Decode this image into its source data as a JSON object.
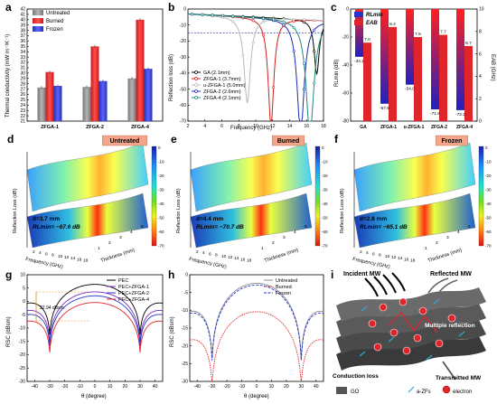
{
  "panels": {
    "a": {
      "letter": "a",
      "ylabel": "Thermal conductivity (mW m⁻¹K⁻¹)",
      "yticks": [
        "21",
        "22",
        "23",
        "24",
        "25",
        "26",
        "27",
        "28",
        "29",
        "30",
        "31",
        "32",
        "33",
        "34",
        "35",
        "36",
        "37",
        "38",
        "39",
        "40",
        "41",
        "42"
      ],
      "legend": [
        "Untreated",
        "Burned",
        "Frozen"
      ],
      "colors": {
        "untreated": "#8c8c8c",
        "burned": "#e0252a",
        "frozen": "#3a44d8"
      },
      "chart_data": {
        "type": "bar",
        "categories": [
          "ZFGA-1",
          "ZFGA-2",
          "ZFGA-4"
        ],
        "series": [
          {
            "name": "Untreated",
            "values": [
              27.3,
              27.4,
              29.0
            ]
          },
          {
            "name": "Burned",
            "values": [
              30.2,
              35.0,
              40.0
            ]
          },
          {
            "name": "Frozen",
            "values": [
              27.6,
              28.5,
              30.8
            ]
          }
        ],
        "ylim": [
          21,
          42
        ]
      }
    },
    "b": {
      "letter": "b",
      "xlabel": "Frequency (GHz)",
      "ylabel": "Reflection loss (dB)",
      "xticks": [
        "2",
        "4",
        "6",
        "8",
        "10",
        "12",
        "14",
        "16",
        "18"
      ],
      "yticks": [
        "0",
        "-10",
        "-20",
        "-30",
        "-40",
        "-50",
        "-60",
        "-70"
      ],
      "legend": [
        "GA (2.1mm)",
        "ZFGA-1 (3.7mm)",
        "u-ZFGA-1 (5.0mm)",
        "ZFGA-2 (2.6mm)",
        "ZFGA-4 (2.1mm)"
      ],
      "colors": [
        "#000000",
        "#d81b1b",
        "#b8b8b8",
        "#1c2bb4",
        "#1f8a7a"
      ],
      "chart_data": {
        "type": "line",
        "xlim": [
          2,
          18
        ],
        "ylim": [
          -70,
          0
        ],
        "series": [
          {
            "name": "GA (2.1mm)",
            "dip_x": 17.2,
            "dip_y": -34.1
          },
          {
            "name": "ZFGA-1 (3.7mm)",
            "dip_x": 11.8,
            "dip_y": -67.6
          },
          {
            "name": "u-ZFGA-1 (5.0mm)",
            "dip_x": 9.0,
            "dip_y": -54.0
          },
          {
            "name": "ZFGA-2 (2.6mm)",
            "dip_x": 15.3,
            "dip_y": -71.6
          },
          {
            "name": "ZFGA-4 (2.1mm)",
            "dip_x": 16.4,
            "dip_y": -72.2
          }
        ]
      }
    },
    "c": {
      "letter": "c",
      "ylabel_left": "RLmin (dB)",
      "ylabel_right": "EAB (GHz)",
      "legend": [
        "RLmin",
        "EAB"
      ],
      "colors": {
        "rl": "#2636c8",
        "eab": "#e0252a"
      },
      "left_ticks": [
        "0",
        "-20",
        "-40",
        "-60",
        "-80"
      ],
      "right_ticks": [
        "0",
        "2",
        "4",
        "6",
        "8",
        "10"
      ],
      "chart_data": {
        "type": "bar",
        "categories": [
          "GA",
          "ZFGA-1",
          "u-ZFGA-1",
          "ZFGA-2",
          "ZFGA-4"
        ],
        "series": [
          {
            "name": "RLmin",
            "values": [
              -34.1,
              -67.6,
              -54.0,
              -71.6,
              -72.2
            ]
          },
          {
            "name": "EAB",
            "values": [
              7.0,
              8.4,
              7.5,
              7.7,
              6.7
            ]
          }
        ],
        "labels_rl": [
          "-34.1",
          "-67.6",
          "-54.0",
          "-71.6",
          "-72.2"
        ],
        "labels_eab": [
          "7.0",
          "8.4",
          "7.5",
          "7.7",
          "6.7"
        ]
      }
    },
    "d": {
      "letter": "d",
      "tag": "Untreated",
      "d_text": "d=3.7 mm",
      "rl_text": "RLmin= −67.6 dB"
    },
    "e": {
      "letter": "e",
      "tag": "Burned",
      "d_text": "d=4.4 mm",
      "rl_text": "RLmin= −70.7 dB"
    },
    "f": {
      "letter": "f",
      "tag": "Frozen",
      "d_text": "d=2.8 mm",
      "rl_text": "RLmin= −65.1 dB"
    },
    "surface_common": {
      "ylabel": "Reflection Loss (dB)",
      "freq_label": "Frequency (GHz)",
      "thick_label": "Thickness (mm)",
      "cbar_ticks": [
        "0",
        "-10",
        "-20",
        "-30",
        "-40",
        "-50",
        "-60",
        "-70"
      ],
      "freq_ticks": [
        "2",
        "4",
        "6",
        "8",
        "10",
        "12",
        "14",
        "16",
        "18"
      ],
      "thick_ticks": [
        "1",
        "2",
        "3",
        "4",
        "5"
      ]
    },
    "g": {
      "letter": "g",
      "xlabel": "θ (degree)",
      "ylabel": "RSC (dBsm)",
      "annot": "22.94 dBsm",
      "legend": [
        "PEC",
        "PEC+ZFGA-1",
        "PEC+ZFGA-2",
        "PEC+ZFGA-4"
      ],
      "colors": [
        "#000000",
        "#7b2cc0",
        "#2636c8",
        "#e0252a"
      ],
      "xticks": [
        "-40",
        "-30",
        "-20",
        "-10",
        "0",
        "10",
        "20",
        "30",
        "40"
      ],
      "yticks": [
        "10",
        "5",
        "0",
        "-5",
        "-10",
        "-15",
        "-20",
        "-25",
        "-30"
      ],
      "chart_data": {
        "type": "line",
        "xlim": [
          -45,
          45
        ],
        "ylim": [
          -30,
          10
        ],
        "series": [
          {
            "name": "PEC",
            "peak": 6.3
          },
          {
            "name": "PEC+ZFGA-1",
            "peak": 3.5
          },
          {
            "name": "PEC+ZFGA-2",
            "peak": 2.0
          },
          {
            "name": "PEC+ZFGA-4",
            "peak": -0.5
          }
        ]
      }
    },
    "h": {
      "letter": "h",
      "xlabel": "θ (degree)",
      "ylabel": "RSC (dBsm)",
      "legend": [
        "Untreated",
        "Burned",
        "Frozen"
      ],
      "colors": [
        "#8c8c8c",
        "#e0252a",
        "#2636c8"
      ],
      "xticks": [
        "-40",
        "-30",
        "-20",
        "-10",
        "0",
        "10",
        "20",
        "30",
        "40"
      ],
      "yticks": [
        "0",
        "-5",
        "-10",
        "-15",
        "-20",
        "-25",
        "-30"
      ],
      "chart_data": {
        "type": "line",
        "xlim": [
          -45,
          45
        ],
        "ylim": [
          -30,
          0
        ],
        "series": [
          {
            "name": "Untreated",
            "peak": -2.5
          },
          {
            "name": "Burned",
            "peak": -10.5
          },
          {
            "name": "Frozen",
            "peak": -3.0
          }
        ]
      }
    },
    "i": {
      "letter": "i",
      "incident": "Incident MW",
      "reflected": "Reflected MW",
      "multiple": "Multiple reflection",
      "conduction": "Conduction loss",
      "transmitted": "Transmitted MW",
      "legend": [
        "GO",
        "a-ZFs",
        "electron"
      ]
    }
  }
}
